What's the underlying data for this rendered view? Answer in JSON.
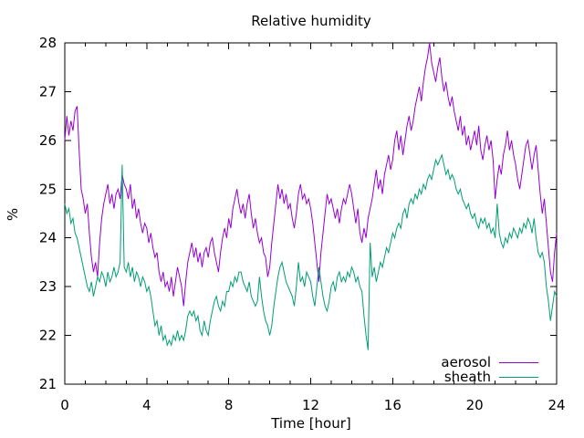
{
  "figure": {
    "title": "Relative humidity",
    "xlabel": "Time [hour]",
    "ylabel": "%",
    "background_color": "#ffffff",
    "frame_color": "#000000",
    "text_color": "#000000"
  },
  "chart_data": {
    "type": "line",
    "title": "Relative humidity",
    "xlabel": "Time [hour]",
    "ylabel": "%",
    "xlim": [
      0,
      24
    ],
    "ylim": [
      21,
      28
    ],
    "xticks": [
      0,
      4,
      8,
      12,
      16,
      20,
      24
    ],
    "x_minor_tick_step": 1,
    "yticks": [
      21,
      22,
      23,
      24,
      25,
      26,
      27,
      28
    ],
    "grid": false,
    "legend_position": "bottom-right-inside",
    "x_start": 0,
    "x_step": 0.1,
    "series": [
      {
        "name": "aerosol",
        "color": "#9400d3",
        "values": [
          26.0,
          26.5,
          26.1,
          26.4,
          26.2,
          26.6,
          26.7,
          25.8,
          25.0,
          24.8,
          24.5,
          24.7,
          24.1,
          23.6,
          23.3,
          23.5,
          23.2,
          23.9,
          24.4,
          24.7,
          24.9,
          25.1,
          24.7,
          24.9,
          24.6,
          24.9,
          25.0,
          24.8,
          25.3,
          25.1,
          25.0,
          24.8,
          25.1,
          24.6,
          24.8,
          24.4,
          24.6,
          24.3,
          24.1,
          24.3,
          24.2,
          23.9,
          24.1,
          23.8,
          23.6,
          23.7,
          23.3,
          23.1,
          23.3,
          23.0,
          23.1,
          22.9,
          23.2,
          22.8,
          23.1,
          23.4,
          23.2,
          23.0,
          22.6,
          23.1,
          23.5,
          23.7,
          23.9,
          23.6,
          23.8,
          23.5,
          23.7,
          23.4,
          23.7,
          23.8,
          23.6,
          23.9,
          24.0,
          23.7,
          23.5,
          23.3,
          23.7,
          24.0,
          24.2,
          24.0,
          24.4,
          24.2,
          24.6,
          24.8,
          25.0,
          24.7,
          24.5,
          24.7,
          24.4,
          24.7,
          24.9,
          24.5,
          24.2,
          24.4,
          24.1,
          23.9,
          24.0,
          23.7,
          23.6,
          23.2,
          23.4,
          23.9,
          24.3,
          24.7,
          25.1,
          24.8,
          25.0,
          24.7,
          24.9,
          24.6,
          24.7,
          24.4,
          24.2,
          24.5,
          24.9,
          25.1,
          24.8,
          24.9,
          24.7,
          24.8,
          24.6,
          24.3,
          23.9,
          23.5,
          23.1,
          23.7,
          24.1,
          24.5,
          24.9,
          24.7,
          24.8,
          24.6,
          24.4,
          24.6,
          24.3,
          24.6,
          24.8,
          24.7,
          24.9,
          25.1,
          24.9,
          24.6,
          24.3,
          24.6,
          24.1,
          23.9,
          24.2,
          24.0,
          24.4,
          24.6,
          24.8,
          25.1,
          25.4,
          25.0,
          25.2,
          24.9,
          25.3,
          25.5,
          25.7,
          25.4,
          25.6,
          26.0,
          26.2,
          25.8,
          26.1,
          25.7,
          26.0,
          26.3,
          26.5,
          26.2,
          26.4,
          26.7,
          26.9,
          27.1,
          26.8,
          27.2,
          27.5,
          27.7,
          28.0,
          27.6,
          27.4,
          27.2,
          27.5,
          27.7,
          27.3,
          27.0,
          27.2,
          26.9,
          26.7,
          26.9,
          26.6,
          26.4,
          26.2,
          26.5,
          26.1,
          26.3,
          25.9,
          26.1,
          25.8,
          26.0,
          26.2,
          25.9,
          26.3,
          25.8,
          25.6,
          25.9,
          26.1,
          25.8,
          26.0,
          25.6,
          24.8,
          25.2,
          25.5,
          25.3,
          25.7,
          25.9,
          26.2,
          25.8,
          26.0,
          25.7,
          25.5,
          25.2,
          25.0,
          25.3,
          25.6,
          25.9,
          26.0,
          25.7,
          25.4,
          25.7,
          25.9,
          25.4,
          24.9,
          24.5,
          24.8,
          24.3,
          23.8,
          23.3,
          23.1,
          23.7,
          24.1
        ]
      },
      {
        "name": "sheath",
        "color": "#009e73",
        "values": [
          24.7,
          24.5,
          24.6,
          24.3,
          24.4,
          24.1,
          24.0,
          23.8,
          23.6,
          23.4,
          23.2,
          23.0,
          22.9,
          23.1,
          22.8,
          23.0,
          23.2,
          23.1,
          23.3,
          23.2,
          23.0,
          23.3,
          23.1,
          23.2,
          23.4,
          23.2,
          23.3,
          23.5,
          25.5,
          23.4,
          23.3,
          23.5,
          23.2,
          23.4,
          23.1,
          23.3,
          23.2,
          23.0,
          23.2,
          23.1,
          22.9,
          23.0,
          22.8,
          22.5,
          22.2,
          22.3,
          22.0,
          22.2,
          21.9,
          22.0,
          21.8,
          21.9,
          21.8,
          22.0,
          21.9,
          22.1,
          21.9,
          22.0,
          21.9,
          22.1,
          22.4,
          22.5,
          22.4,
          22.5,
          22.3,
          22.4,
          22.1,
          22.0,
          22.3,
          22.1,
          22.0,
          22.3,
          22.5,
          22.7,
          22.8,
          22.6,
          22.5,
          22.7,
          22.6,
          22.9,
          22.9,
          23.1,
          23.0,
          23.2,
          23.1,
          23.3,
          23.3,
          23.1,
          23.0,
          22.9,
          23.1,
          22.8,
          22.7,
          22.6,
          22.7,
          23.2,
          22.8,
          22.5,
          22.3,
          22.2,
          22.0,
          22.2,
          22.6,
          22.9,
          23.2,
          23.4,
          23.5,
          23.3,
          23.1,
          23.0,
          22.9,
          22.8,
          22.6,
          23.0,
          23.5,
          23.1,
          23.2,
          23.0,
          23.3,
          23.2,
          23.1,
          22.8,
          22.6,
          23.0,
          23.4,
          23.1,
          22.8,
          22.6,
          22.5,
          22.7,
          23.0,
          23.1,
          22.9,
          23.2,
          23.3,
          23.1,
          23.2,
          23.1,
          23.3,
          23.2,
          23.4,
          23.3,
          23.1,
          23.2,
          23.0,
          22.9,
          22.4,
          22.0,
          21.7,
          23.9,
          23.2,
          23.4,
          23.1,
          23.3,
          23.5,
          23.4,
          23.6,
          23.8,
          23.7,
          23.9,
          24.1,
          24.0,
          24.2,
          24.3,
          24.2,
          24.5,
          24.6,
          24.4,
          24.7,
          24.8,
          24.7,
          24.9,
          24.8,
          25.0,
          24.9,
          25.1,
          25.0,
          25.2,
          25.3,
          25.2,
          25.4,
          25.6,
          25.5,
          25.6,
          25.7,
          25.5,
          25.3,
          25.4,
          25.2,
          25.3,
          25.2,
          25.0,
          24.9,
          25.0,
          24.8,
          24.7,
          24.6,
          24.7,
          24.5,
          24.4,
          24.5,
          24.3,
          24.2,
          24.4,
          24.3,
          24.4,
          24.2,
          24.3,
          24.1,
          24.2,
          24.0,
          24.7,
          24.1,
          23.9,
          23.8,
          24.0,
          23.9,
          24.1,
          24.0,
          24.2,
          24.1,
          24.0,
          24.2,
          24.1,
          24.3,
          24.2,
          24.4,
          24.3,
          24.1,
          24.4,
          24.0,
          23.7,
          23.6,
          23.7,
          23.5,
          23.0,
          22.7,
          22.3,
          22.6,
          22.9,
          22.8
        ]
      }
    ]
  }
}
